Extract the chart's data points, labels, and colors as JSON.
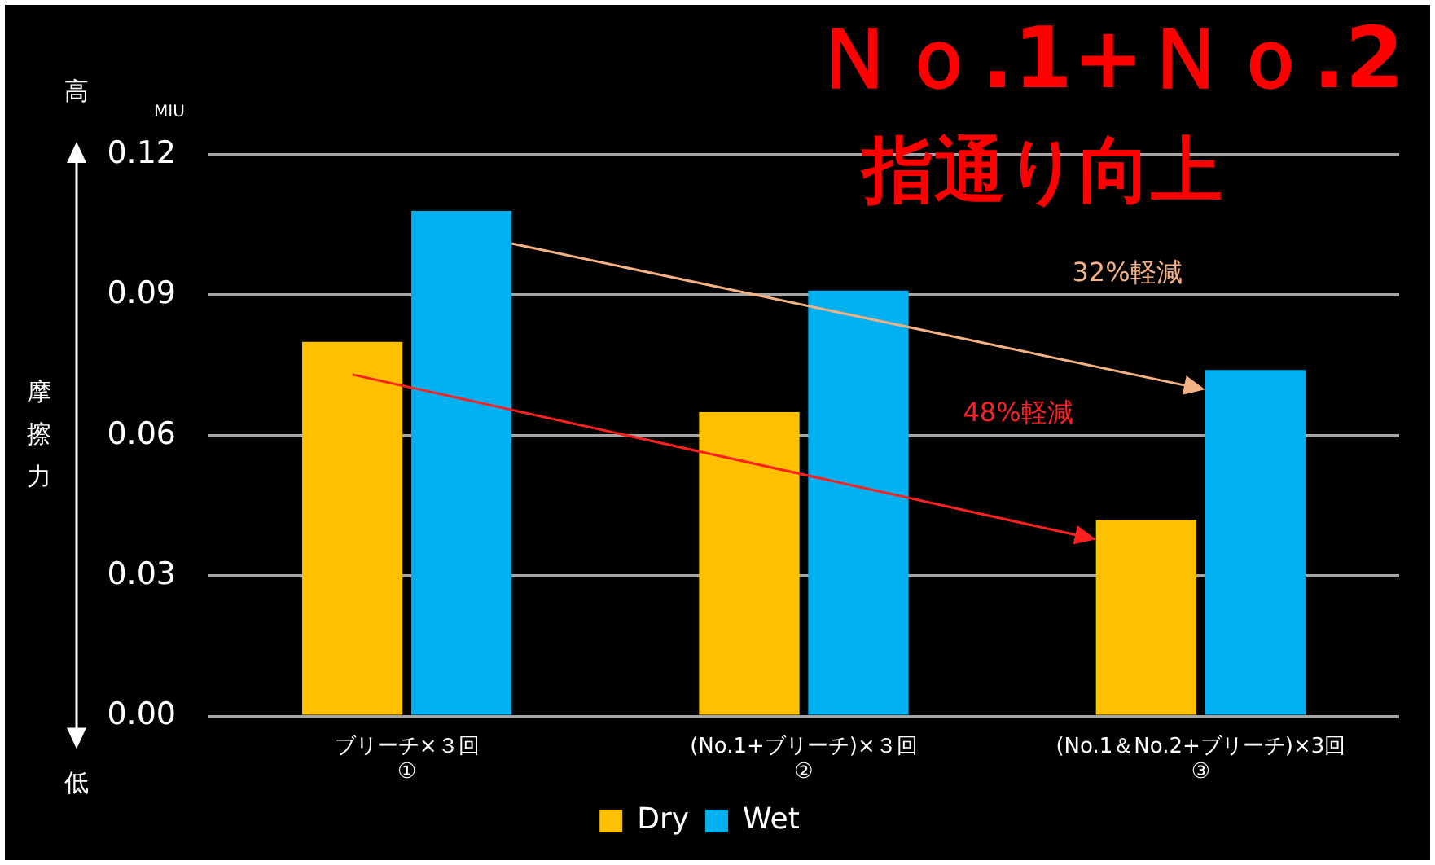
{
  "chart_data": {
    "type": "bar",
    "title": "Ｎｏ.1+Ｎｏ.2",
    "subtitle": "指通り向上",
    "ylabel": "摩擦力",
    "categories": [
      "ブリーチ×３回\n①",
      "(No.1+ブリーチ)×３回\n②",
      "(No.1＆No.2+ブリーチ)×3回\n③"
    ],
    "series": [
      {
        "name": "Dry",
        "color": "#ffc000",
        "values": [
          0.08,
          0.065,
          0.042
        ]
      },
      {
        "name": "Wet",
        "color": "#00b0f0",
        "values": [
          0.108,
          0.091,
          0.074
        ]
      }
    ],
    "ylim": [
      0,
      0.12
    ],
    "yticks": [
      {
        "value": 0,
        "label": "0.00"
      },
      {
        "value": 0.03,
        "label": "0.03"
      },
      {
        "value": 0.06,
        "label": "0.06"
      },
      {
        "value": 0.09,
        "label": "0.09"
      },
      {
        "value": 0.12,
        "label": "0.12"
      }
    ],
    "grid": "y",
    "legend": "bottom",
    "annotations": [
      "高",
      "低",
      "MIU",
      "32%軽減",
      "48%軽減"
    ]
  }
}
